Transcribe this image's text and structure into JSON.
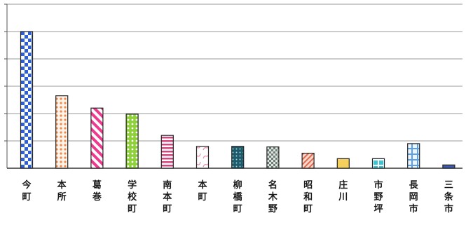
{
  "chart_data": {
    "type": "bar",
    "title": "",
    "xlabel": "",
    "ylabel": "",
    "ylim": [
      0,
      6
    ],
    "yticks": [
      0,
      1,
      2,
      3,
      4,
      5,
      6
    ],
    "tick_labels_shown": false,
    "grid": true,
    "legend": "none",
    "categories": [
      "今町",
      "本所",
      "葛巻",
      "学校町",
      "南本町",
      "本町",
      "柳橋町",
      "名木野",
      "昭和町",
      "庄川",
      "市野坪",
      "長岡市",
      "三条市"
    ],
    "values": [
      5.0,
      2.65,
      2.2,
      1.98,
      1.2,
      0.8,
      0.8,
      0.78,
      0.55,
      0.35,
      0.35,
      0.9,
      0.12
    ],
    "bar_styles": [
      {
        "pattern": "checker",
        "color": "#2f5fd6"
      },
      {
        "pattern": "dots",
        "color": "#f0894a"
      },
      {
        "pattern": "diagonal",
        "color": "#ee3a8c"
      },
      {
        "pattern": "dots",
        "color": "#8fd13a"
      },
      {
        "pattern": "horizontal",
        "color": "#d5447c"
      },
      {
        "pattern": "squiggle",
        "color": "#ee8ab0"
      },
      {
        "pattern": "dots-dark",
        "color": "#1f5a6b"
      },
      {
        "pattern": "checker",
        "color": "#6f7f77"
      },
      {
        "pattern": "diagonal",
        "color": "#e06a4e"
      },
      {
        "pattern": "solid",
        "color": "#f6d05c"
      },
      {
        "pattern": "cross",
        "color": "#36c6d8"
      },
      {
        "pattern": "grid",
        "color": "#5b9fe6"
      },
      {
        "pattern": "solid",
        "color": "#3f5aa8"
      }
    ]
  }
}
